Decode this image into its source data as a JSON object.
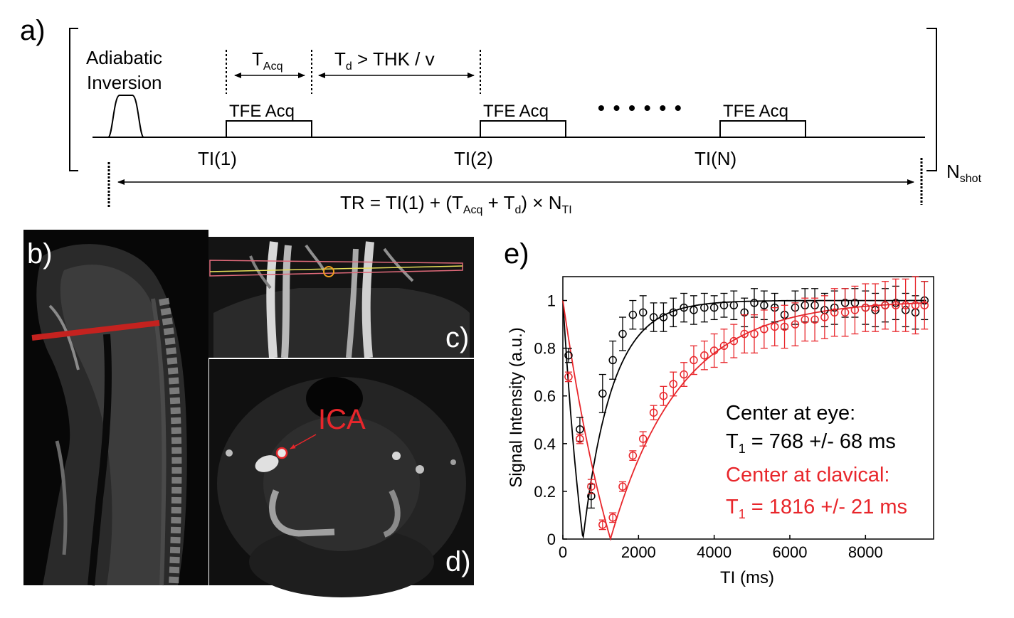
{
  "panel_a": {
    "label": "a)",
    "inversion_line1": "Adiabatic",
    "inversion_line2": "Inversion",
    "t_acq_base": "T",
    "t_acq_sub": "Acq",
    "t_d_base": "T",
    "t_d_sub": "d",
    "t_d_rest": " > THK / v",
    "blocks": [
      "TFE Acq",
      "TFE Acq",
      "TFE Acq"
    ],
    "ellipsis": "• • • • • •",
    "ti_labels": [
      "TI(1)",
      "TI(2)",
      "TI(N)"
    ],
    "nshot_base": "N",
    "nshot_sub": "shot",
    "tr_part1": "TR = TI(1) + (T",
    "tr_sub1": "Acq",
    "tr_part2": " + T",
    "tr_sub2": "d",
    "tr_part3": ") × N",
    "tr_sub3": "TI"
  },
  "panel_b": {
    "label": "b)"
  },
  "panel_c": {
    "label": "c)"
  },
  "panel_d": {
    "label": "d)",
    "ica_label": "ICA"
  },
  "panel_e": {
    "label": "e)"
  },
  "colors": {
    "red": "#e8262b",
    "black": "#000000"
  },
  "chart_data": {
    "type": "scatter",
    "xlabel": "TI (ms)",
    "ylabel": "Signal Intensity (a.u.)",
    "xlim": [
      0,
      9800
    ],
    "ylim": [
      0,
      1.1
    ],
    "xticks": [
      0,
      2000,
      4000,
      6000,
      8000
    ],
    "yticks": [
      0,
      0.2,
      0.4,
      0.6,
      0.8,
      1
    ],
    "ytick_labels": [
      "0",
      "0.2",
      "0.4",
      "0.6",
      "0.8",
      "1"
    ],
    "series": [
      {
        "name": "Center at eye",
        "color": "#000000",
        "t1": 768,
        "x": [
          150,
          450,
          750,
          1050,
          1320,
          1580,
          1850,
          2120,
          2400,
          2660,
          2920,
          3200,
          3460,
          3740,
          4000,
          4260,
          4520,
          4800,
          5060,
          5320,
          5600,
          5860,
          6140,
          6400,
          6660,
          6920,
          7180,
          7460,
          7720,
          8000,
          8260,
          8520,
          8800,
          9060,
          9320,
          9560
        ],
        "y": [
          0.77,
          0.46,
          0.18,
          0.61,
          0.75,
          0.86,
          0.94,
          0.95,
          0.93,
          0.93,
          0.95,
          0.97,
          0.96,
          0.97,
          0.97,
          0.98,
          0.98,
          0.95,
          0.99,
          0.98,
          0.97,
          0.94,
          0.97,
          0.98,
          0.98,
          0.96,
          0.97,
          0.99,
          0.99,
          0.97,
          0.96,
          0.98,
          0.99,
          0.96,
          0.95,
          1.0
        ],
        "err": [
          0.03,
          0.05,
          0.05,
          0.08,
          0.08,
          0.07,
          0.06,
          0.07,
          0.06,
          0.06,
          0.06,
          0.06,
          0.06,
          0.06,
          0.05,
          0.05,
          0.06,
          0.06,
          0.06,
          0.06,
          0.06,
          0.06,
          0.07,
          0.07,
          0.07,
          0.07,
          0.07,
          0.06,
          0.06,
          0.07,
          0.07,
          0.07,
          0.07,
          0.07,
          0.07,
          0.08
        ],
        "legend_line": "Center at eye:",
        "t1_base": "T",
        "t1_sub": "1",
        "t1_value": " = 768 +/- 68 ms"
      },
      {
        "name": "Center at clavical",
        "color": "#e8262b",
        "t1": 1816,
        "x": [
          150,
          450,
          750,
          1050,
          1320,
          1580,
          1850,
          2120,
          2400,
          2660,
          2920,
          3200,
          3460,
          3740,
          4000,
          4260,
          4520,
          4800,
          5060,
          5320,
          5600,
          5860,
          6140,
          6400,
          6660,
          6920,
          7180,
          7460,
          7720,
          8000,
          8260,
          8520,
          8800,
          9060,
          9320,
          9560
        ],
        "y": [
          0.68,
          0.42,
          0.22,
          0.06,
          0.09,
          0.22,
          0.35,
          0.42,
          0.53,
          0.6,
          0.65,
          0.69,
          0.75,
          0.77,
          0.79,
          0.81,
          0.83,
          0.86,
          0.86,
          0.88,
          0.89,
          0.89,
          0.9,
          0.92,
          0.92,
          0.93,
          0.95,
          0.95,
          0.96,
          0.97,
          0.97,
          0.98,
          0.98,
          0.98,
          0.98,
          0.98
        ],
        "err": [
          0.02,
          0.02,
          0.03,
          0.02,
          0.02,
          0.02,
          0.02,
          0.03,
          0.03,
          0.04,
          0.05,
          0.05,
          0.06,
          0.06,
          0.07,
          0.07,
          0.07,
          0.08,
          0.08,
          0.08,
          0.08,
          0.09,
          0.09,
          0.09,
          0.09,
          0.09,
          0.1,
          0.1,
          0.1,
          0.1,
          0.1,
          0.1,
          0.11,
          0.11,
          0.12,
          0.1
        ],
        "legend_line": "Center at clavical:",
        "t1_base": "T",
        "t1_sub": "1",
        "t1_value": " = 1816 +/- 21 ms"
      }
    ]
  }
}
